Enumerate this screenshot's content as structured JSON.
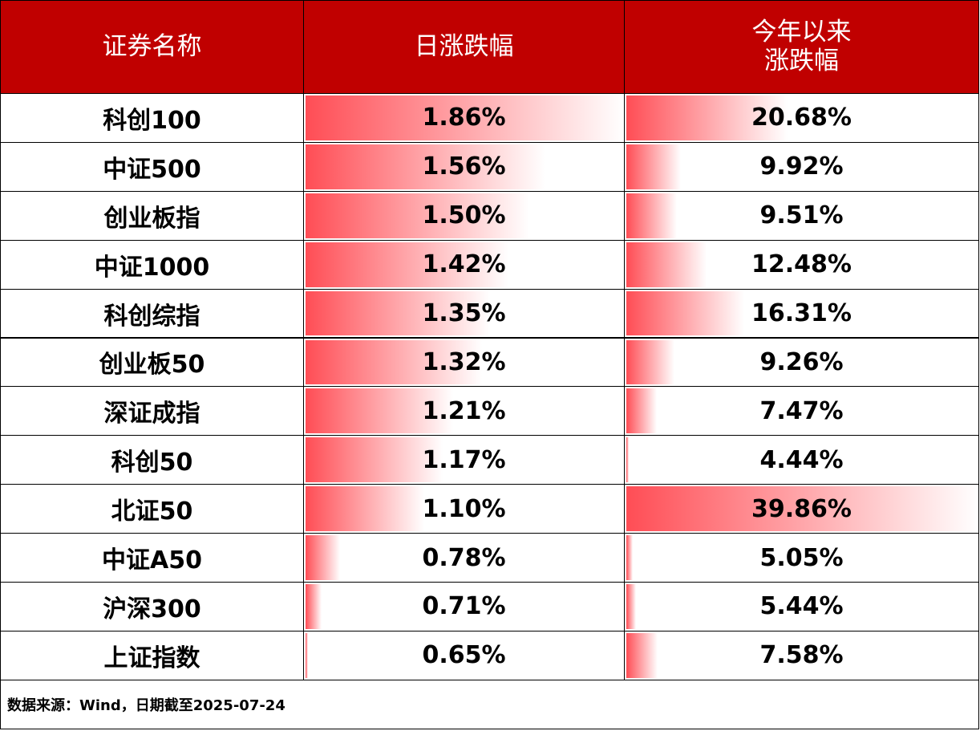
{
  "table": {
    "headers": [
      "证券名称",
      "日涨跌幅",
      "今年以来\n涨跌幅"
    ],
    "names": [
      "科创100",
      "中证500",
      "创业板指",
      "中证1000",
      "科创综指",
      "创业板50",
      "深证成指",
      "科创50",
      "北证50",
      "中证A50",
      "沪深300",
      "上证指数"
    ],
    "daily": {
      "values": [
        1.86,
        1.56,
        1.5,
        1.42,
        1.35,
        1.32,
        1.21,
        1.17,
        1.1,
        0.78,
        0.71,
        0.65
      ],
      "value_labels": [
        "1.86%",
        "1.56%",
        "1.50%",
        "1.42%",
        "1.35%",
        "1.32%",
        "1.21%",
        "1.17%",
        "1.10%",
        "0.78%",
        "0.71%",
        "0.65%"
      ]
    },
    "ytd": {
      "values": [
        20.68,
        9.92,
        9.51,
        12.48,
        16.31,
        9.26,
        7.47,
        4.44,
        39.86,
        5.05,
        5.44,
        7.58
      ],
      "value_labels": [
        "20.68%",
        "9.92%",
        "9.51%",
        "12.48%",
        "16.31%",
        "9.26%",
        "7.47%",
        "4.44%",
        "39.86%",
        "5.05%",
        "5.44%",
        "7.58%"
      ]
    },
    "bar_color": "#ff4d55"
  },
  "footer": "数据来源：Wind，日期截至2025-07-24"
}
